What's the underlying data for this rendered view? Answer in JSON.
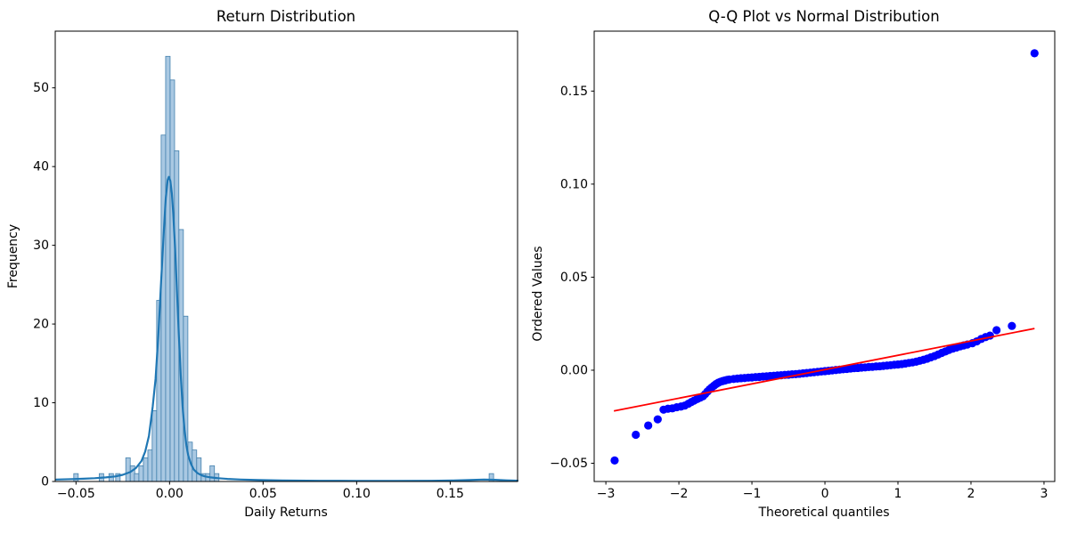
{
  "figure": {
    "background": "#ffffff"
  },
  "chart_data": [
    {
      "type": "bar",
      "subtype": "histogram_with_kde",
      "title": "Return Distribution",
      "xlabel": "Daily Returns",
      "ylabel": "Frequency",
      "xlim": [
        -0.0611,
        0.186
      ],
      "ylim": [
        0,
        57.2
      ],
      "grid": false,
      "x_ticks": [
        {
          "v": -0.05,
          "label": "−0.05"
        },
        {
          "v": 0.0,
          "label": "0.00"
        },
        {
          "v": 0.05,
          "label": "0.05"
        },
        {
          "v": 0.1,
          "label": "0.10"
        },
        {
          "v": 0.15,
          "label": "0.15"
        }
      ],
      "y_ticks": [
        {
          "v": 0,
          "label": "0"
        },
        {
          "v": 10,
          "label": "10"
        },
        {
          "v": 20,
          "label": "20"
        },
        {
          "v": 30,
          "label": "30"
        },
        {
          "v": 40,
          "label": "40"
        },
        {
          "v": 50,
          "label": "50"
        }
      ],
      "bin_width": 0.00238,
      "bars": [
        [
          -0.05,
          1
        ],
        [
          -0.0364,
          1
        ],
        [
          -0.0312,
          1
        ],
        [
          -0.0276,
          1
        ],
        [
          -0.0222,
          3
        ],
        [
          -0.0198,
          2
        ],
        [
          -0.0176,
          1
        ],
        [
          -0.0152,
          2
        ],
        [
          -0.0128,
          3
        ],
        [
          -0.0104,
          4
        ],
        [
          -0.0081,
          9
        ],
        [
          -0.0057,
          23
        ],
        [
          -0.0033,
          44
        ],
        [
          -0.0009,
          54
        ],
        [
          0.0015,
          51
        ],
        [
          0.0038,
          42
        ],
        [
          0.0062,
          32
        ],
        [
          0.0086,
          21
        ],
        [
          0.011,
          5
        ],
        [
          0.0133,
          4
        ],
        [
          0.0157,
          3
        ],
        [
          0.0181,
          1
        ],
        [
          0.0205,
          1
        ],
        [
          0.0228,
          2
        ],
        [
          0.0252,
          1
        ],
        [
          0.172,
          1
        ]
      ],
      "kde": [
        [
          -0.0605,
          0.25
        ],
        [
          -0.052,
          0.3
        ],
        [
          -0.046,
          0.35
        ],
        [
          -0.04,
          0.42
        ],
        [
          -0.034,
          0.52
        ],
        [
          -0.029,
          0.65
        ],
        [
          -0.025,
          0.85
        ],
        [
          -0.021,
          1.2
        ],
        [
          -0.018,
          1.7
        ],
        [
          -0.015,
          2.6
        ],
        [
          -0.013,
          3.8
        ],
        [
          -0.011,
          5.8
        ],
        [
          -0.009,
          9.5
        ],
        [
          -0.0075,
          13.0
        ],
        [
          -0.006,
          18.5
        ],
        [
          -0.0045,
          25.5
        ],
        [
          -0.003,
          32.0
        ],
        [
          -0.002,
          36.0
        ],
        [
          -0.001,
          38.3
        ],
        [
          -0.0004,
          38.7
        ],
        [
          0.0004,
          38.2
        ],
        [
          0.0012,
          36.6
        ],
        [
          0.002,
          34.0
        ],
        [
          0.003,
          29.5
        ],
        [
          0.004,
          24.0
        ],
        [
          0.005,
          18.5
        ],
        [
          0.006,
          13.5
        ],
        [
          0.007,
          9.5
        ],
        [
          0.008,
          6.6
        ],
        [
          0.009,
          4.6
        ],
        [
          0.01,
          3.3
        ],
        [
          0.0115,
          2.2
        ],
        [
          0.013,
          1.5
        ],
        [
          0.015,
          1.05
        ],
        [
          0.017,
          0.8
        ],
        [
          0.019,
          0.65
        ],
        [
          0.022,
          0.52
        ],
        [
          0.026,
          0.42
        ],
        [
          0.031,
          0.33
        ],
        [
          0.038,
          0.25
        ],
        [
          0.048,
          0.18
        ],
        [
          0.06,
          0.13
        ],
        [
          0.08,
          0.09
        ],
        [
          0.1,
          0.08
        ],
        [
          0.12,
          0.08
        ],
        [
          0.14,
          0.09
        ],
        [
          0.152,
          0.12
        ],
        [
          0.16,
          0.18
        ],
        [
          0.168,
          0.25
        ],
        [
          0.174,
          0.22
        ],
        [
          0.18,
          0.15
        ],
        [
          0.186,
          0.1
        ]
      ],
      "colors": {
        "bar_fill": "#a9c8e2",
        "bar_edge": "#4380ad",
        "kde": "#1f77b4",
        "spine": "#000000"
      }
    },
    {
      "type": "scatter",
      "subtype": "qq_plot",
      "title": "Q-Q Plot vs Normal Distribution",
      "xlabel": "Theoretical quantiles",
      "ylabel": "Ordered Values",
      "xlim": [
        -3.16,
        3.147
      ],
      "ylim": [
        -0.0598,
        0.1822
      ],
      "grid": false,
      "x_ticks": [
        {
          "v": -3,
          "label": "−3"
        },
        {
          "v": -2,
          "label": "−2"
        },
        {
          "v": -1,
          "label": "−1"
        },
        {
          "v": 0,
          "label": "0"
        },
        {
          "v": 1,
          "label": "1"
        },
        {
          "v": 2,
          "label": "2"
        },
        {
          "v": 3,
          "label": "3"
        }
      ],
      "y_ticks": [
        {
          "v": -0.05,
          "label": "−0.05"
        },
        {
          "v": 0.0,
          "label": "0.00"
        },
        {
          "v": 0.05,
          "label": "0.05"
        },
        {
          "v": 0.1,
          "label": "0.10"
        },
        {
          "v": 0.15,
          "label": "0.15"
        }
      ],
      "fit_line": {
        "x1": -2.89,
        "y1": -0.0219,
        "x2": 2.87,
        "y2": 0.0224
      },
      "marker": {
        "color": "#0000ff",
        "radius": 4.6
      },
      "colors": {
        "line": "#ff0000",
        "spine": "#000000"
      },
      "points": [
        [
          -2.88,
          -0.0485
        ],
        [
          -2.59,
          -0.0347
        ],
        [
          -2.42,
          -0.0297
        ],
        [
          -2.29,
          -0.0264
        ],
        [
          -2.21,
          -0.0212
        ],
        [
          -2.15,
          -0.0207
        ],
        [
          -2.09,
          -0.0205
        ],
        [
          -2.03,
          -0.0199
        ],
        [
          -1.97,
          -0.0195
        ],
        [
          -1.92,
          -0.019
        ],
        [
          -1.87,
          -0.018
        ],
        [
          -1.83,
          -0.0171
        ],
        [
          -1.79,
          -0.0163
        ],
        [
          -1.75,
          -0.0155
        ],
        [
          -1.71,
          -0.0148
        ],
        [
          -1.67,
          -0.014
        ],
        [
          -1.64,
          -0.0128
        ],
        [
          -1.61,
          -0.0115
        ],
        [
          -1.58,
          -0.0103
        ],
        [
          -1.55,
          -0.0093
        ],
        [
          -1.52,
          -0.0083
        ],
        [
          -1.49,
          -0.0074
        ],
        [
          -1.46,
          -0.0067
        ],
        [
          -1.43,
          -0.0062
        ],
        [
          -1.4,
          -0.0058
        ],
        [
          -1.37,
          -0.0055
        ],
        [
          -1.34,
          -0.0052
        ],
        [
          -1.31,
          -0.005
        ],
        [
          -1.25,
          -0.0047
        ],
        [
          -1.2,
          -0.0045
        ],
        [
          -1.15,
          -0.0043
        ],
        [
          -1.1,
          -0.0042
        ],
        [
          -1.05,
          -0.004
        ],
        [
          -1.0,
          -0.0039
        ],
        [
          -0.95,
          -0.0037
        ],
        [
          -0.9,
          -0.0036
        ],
        [
          -0.85,
          -0.0034
        ],
        [
          -0.8,
          -0.0033
        ],
        [
          -0.75,
          -0.0031
        ],
        [
          -0.7,
          -0.003
        ],
        [
          -0.65,
          -0.0028
        ],
        [
          -0.6,
          -0.0027
        ],
        [
          -0.55,
          -0.0025
        ],
        [
          -0.5,
          -0.0024
        ],
        [
          -0.45,
          -0.0022
        ],
        [
          -0.4,
          -0.0021
        ],
        [
          -0.35,
          -0.0019
        ],
        [
          -0.3,
          -0.0017
        ],
        [
          -0.25,
          -0.0015
        ],
        [
          -0.2,
          -0.0013
        ],
        [
          -0.15,
          -0.0011
        ],
        [
          -0.1,
          -0.0009
        ],
        [
          -0.05,
          -0.0007
        ],
        [
          0.0,
          -0.0005
        ],
        [
          0.05,
          -0.0003
        ],
        [
          0.1,
          -0.0001
        ],
        [
          0.15,
          0.0001
        ],
        [
          0.2,
          0.0003
        ],
        [
          0.25,
          0.0005
        ],
        [
          0.3,
          0.0007
        ],
        [
          0.35,
          0.0009
        ],
        [
          0.4,
          0.0011
        ],
        [
          0.45,
          0.0012
        ],
        [
          0.5,
          0.0014
        ],
        [
          0.55,
          0.0015
        ],
        [
          0.6,
          0.0017
        ],
        [
          0.65,
          0.0018
        ],
        [
          0.7,
          0.002
        ],
        [
          0.75,
          0.0021
        ],
        [
          0.8,
          0.0023
        ],
        [
          0.85,
          0.0025
        ],
        [
          0.9,
          0.0027
        ],
        [
          0.95,
          0.0029
        ],
        [
          1.0,
          0.0031
        ],
        [
          1.05,
          0.0033
        ],
        [
          1.1,
          0.0036
        ],
        [
          1.15,
          0.0039
        ],
        [
          1.2,
          0.0042
        ],
        [
          1.25,
          0.0046
        ],
        [
          1.3,
          0.0051
        ],
        [
          1.35,
          0.0056
        ],
        [
          1.4,
          0.0062
        ],
        [
          1.45,
          0.0069
        ],
        [
          1.5,
          0.0076
        ],
        [
          1.55,
          0.0084
        ],
        [
          1.6,
          0.0093
        ],
        [
          1.65,
          0.0101
        ],
        [
          1.7,
          0.0109
        ],
        [
          1.75,
          0.0116
        ],
        [
          1.8,
          0.0122
        ],
        [
          1.85,
          0.0128
        ],
        [
          1.9,
          0.0133
        ],
        [
          1.95,
          0.0138
        ],
        [
          2.02,
          0.0145
        ],
        [
          2.08,
          0.0155
        ],
        [
          2.14,
          0.0168
        ],
        [
          2.2,
          0.0178
        ],
        [
          2.26,
          0.0186
        ],
        [
          2.35,
          0.0215
        ],
        [
          2.56,
          0.0238
        ],
        [
          2.87,
          0.1703
        ]
      ]
    }
  ]
}
